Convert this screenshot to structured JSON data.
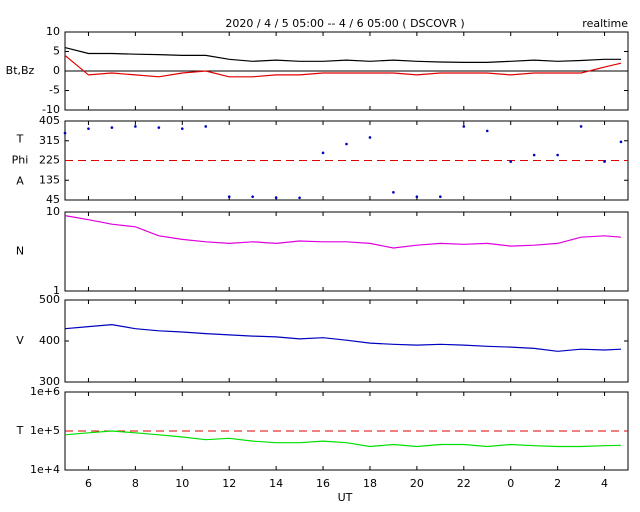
{
  "chart_data": [
    {
      "type": "line",
      "title": "2020 / 4 / 5  05:00 -- 4 / 6  05:00 ( DSCOVR )",
      "annotation": "realtime",
      "ylabel": "Bt,Bz",
      "x": [
        5,
        6,
        7,
        8,
        9,
        10,
        11,
        12,
        13,
        14,
        15,
        16,
        17,
        18,
        19,
        20,
        21,
        22,
        23,
        24,
        25,
        26,
        27,
        28,
        28.7
      ],
      "xlim": [
        5,
        29
      ],
      "ylim": [
        -10,
        10
      ],
      "yticks": [
        10,
        5,
        0,
        -5,
        -10
      ],
      "reference_line": {
        "value": 0,
        "color": "#000000",
        "dashed": false
      },
      "series": [
        {
          "name": "Bt",
          "color": "#000000",
          "values": [
            6,
            4.5,
            4.5,
            4.3,
            4.2,
            4,
            4,
            3,
            2.5,
            2.8,
            2.5,
            2.5,
            2.8,
            2.5,
            2.8,
            2.5,
            2.3,
            2.2,
            2.2,
            2.5,
            2.8,
            2.5,
            2.7,
            3,
            3
          ]
        },
        {
          "name": "Bz",
          "color": "#e00000",
          "values": [
            4,
            -1,
            -0.5,
            -1,
            -1.5,
            -0.5,
            0,
            -1.5,
            -1.5,
            -1,
            -1,
            -0.5,
            -0.5,
            -0.5,
            -0.5,
            -1,
            -0.5,
            -0.5,
            -0.5,
            -1,
            -0.5,
            -0.5,
            -0.5,
            1,
            2
          ]
        }
      ]
    },
    {
      "type": "scatter",
      "ylabel": [
        "T",
        "Phi",
        "A"
      ],
      "x": [
        5,
        6,
        7,
        8,
        9,
        10,
        11,
        12,
        13,
        14,
        15,
        16,
        17,
        18,
        19,
        20,
        21,
        22,
        23,
        24,
        25,
        26,
        27,
        28,
        28.7
      ],
      "xlim": [
        5,
        29
      ],
      "ylim": [
        45,
        405
      ],
      "yticks": [
        405,
        315,
        225,
        135,
        45
      ],
      "reference_line": {
        "value": 225,
        "color": "#e00000",
        "dashed": true
      },
      "series": [
        {
          "name": "Phi",
          "color": "#0000c0",
          "values": [
            350,
            370,
            375,
            380,
            375,
            370,
            380,
            60,
            60,
            55,
            55,
            260,
            300,
            330,
            80,
            60,
            60,
            380,
            360,
            220,
            250,
            250,
            380,
            220,
            310
          ]
        }
      ]
    },
    {
      "type": "line",
      "ylabel": "N",
      "ylog": true,
      "x": [
        5,
        6,
        7,
        8,
        9,
        10,
        11,
        12,
        13,
        14,
        15,
        16,
        17,
        18,
        19,
        20,
        21,
        22,
        23,
        24,
        25,
        26,
        27,
        28,
        28.7
      ],
      "xlim": [
        5,
        29
      ],
      "ylim": [
        1,
        10
      ],
      "yticks": [
        10,
        1
      ],
      "series": [
        {
          "name": "N",
          "color": "#e000e0",
          "values": [
            9,
            8,
            7,
            6.5,
            5,
            4.5,
            4.2,
            4,
            4.2,
            4,
            4.3,
            4.2,
            4.2,
            4,
            3.5,
            3.8,
            4,
            3.9,
            4,
            3.7,
            3.8,
            4,
            4.8,
            5,
            4.8
          ]
        }
      ]
    },
    {
      "type": "line",
      "ylabel": "V",
      "x": [
        5,
        6,
        7,
        8,
        9,
        10,
        11,
        12,
        13,
        14,
        15,
        16,
        17,
        18,
        19,
        20,
        21,
        22,
        23,
        24,
        25,
        26,
        27,
        28,
        28.7
      ],
      "xlim": [
        5,
        29
      ],
      "ylim": [
        300,
        500
      ],
      "yticks": [
        500,
        400,
        300
      ],
      "series": [
        {
          "name": "V",
          "color": "#0000c0",
          "values": [
            430,
            435,
            440,
            430,
            425,
            422,
            418,
            415,
            412,
            410,
            405,
            408,
            402,
            395,
            392,
            390,
            392,
            390,
            387,
            385,
            382,
            375,
            380,
            378,
            380
          ]
        }
      ]
    },
    {
      "type": "line",
      "ylabel": "T",
      "ylog": true,
      "xlabel": "UT",
      "x": [
        5,
        6,
        7,
        8,
        9,
        10,
        11,
        12,
        13,
        14,
        15,
        16,
        17,
        18,
        19,
        20,
        21,
        22,
        23,
        24,
        25,
        26,
        27,
        28,
        28.7
      ],
      "xlim": [
        5,
        29
      ],
      "ylim": [
        10000,
        1000000
      ],
      "yticks": [
        {
          "value": 1000000,
          "label": "1e+6"
        },
        {
          "value": 100000,
          "label": "1e+5"
        },
        {
          "value": 10000,
          "label": "1e+4"
        }
      ],
      "xticks": [
        6,
        8,
        10,
        12,
        14,
        16,
        18,
        20,
        22,
        {
          "value": 24,
          "label": "0"
        },
        {
          "value": 26,
          "label": "2"
        },
        {
          "value": 28,
          "label": "4"
        }
      ],
      "reference_line": {
        "value": 100000,
        "color": "#e00000",
        "dashed": true
      },
      "series": [
        {
          "name": "T",
          "color": "#00e000",
          "values": [
            80000,
            90000,
            100000,
            90000,
            80000,
            70000,
            60000,
            65000,
            55000,
            50000,
            50000,
            55000,
            50000,
            40000,
            45000,
            40000,
            45000,
            45000,
            40000,
            45000,
            42000,
            40000,
            40000,
            42000,
            43000
          ]
        }
      ]
    }
  ]
}
